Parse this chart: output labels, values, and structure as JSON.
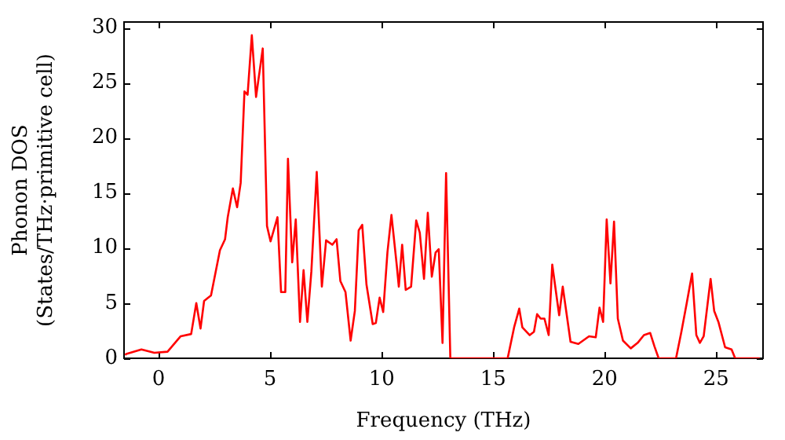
{
  "chart_data": {
    "type": "line",
    "xlabel": "Frequency (THz)",
    "ylabel": "Phonon DOS (States/THz·primitive cell)",
    "xlim": [
      -1.55,
      27.1
    ],
    "ylim": [
      0,
      30.5
    ],
    "xticks": [
      0,
      5,
      10,
      15,
      20,
      25
    ],
    "yticks": [
      0,
      5,
      10,
      15,
      20,
      25,
      30
    ],
    "grid": false,
    "legend": false,
    "marker": "none",
    "line_style": "solid",
    "series": [
      {
        "color": "#ff0000",
        "x": [
          -1.5,
          -1.45,
          -0.77,
          -0.19,
          0.4,
          0.99,
          1.46,
          1.69,
          1.88,
          2.04,
          2.35,
          2.75,
          2.98,
          3.1,
          3.33,
          3.52,
          3.68,
          3.85,
          3.99,
          4.18,
          4.37,
          4.67,
          4.86,
          5.02,
          5.33,
          5.49,
          5.68,
          5.8,
          5.99,
          6.15,
          6.34,
          6.5,
          6.67,
          6.85,
          7.09,
          7.32,
          7.51,
          7.79,
          7.98,
          8.15,
          8.38,
          8.61,
          8.8,
          8.97,
          9.13,
          9.32,
          9.6,
          9.74,
          9.91,
          10.07,
          10.26,
          10.44,
          10.68,
          10.77,
          10.92,
          11.08,
          11.32,
          11.55,
          11.71,
          11.9,
          12.07,
          12.25,
          12.42,
          12.56,
          12.73,
          12.89,
          13.08,
          15.65,
          15.94,
          16.17,
          16.31,
          16.64,
          16.83,
          16.97,
          17.13,
          17.3,
          17.49,
          17.65,
          17.96,
          18.12,
          18.47,
          18.82,
          19.3,
          19.6,
          19.77,
          19.93,
          20.09,
          20.26,
          20.42,
          20.59,
          20.82,
          21.17,
          21.48,
          21.76,
          22.04,
          22.23,
          22.42,
          23.2,
          23.44,
          23.68,
          23.92,
          24.11,
          24.27,
          24.44,
          24.75,
          24.91,
          25.1,
          25.4,
          25.69,
          25.85,
          26.95
        ],
        "values": [
          0.3,
          0.4,
          0.8,
          0.5,
          0.6,
          2.0,
          2.2,
          5.0,
          2.7,
          5.2,
          5.7,
          9.8,
          10.8,
          12.8,
          15.4,
          13.7,
          15.9,
          24.2,
          23.9,
          29.3,
          23.7,
          28.1,
          12.0,
          10.6,
          12.8,
          6.0,
          6.0,
          18.1,
          8.7,
          12.6,
          3.3,
          8.0,
          3.3,
          7.9,
          16.9,
          6.5,
          10.7,
          10.3,
          10.8,
          7.0,
          6.0,
          1.6,
          4.3,
          11.6,
          12.1,
          6.7,
          3.1,
          3.2,
          5.5,
          4.2,
          9.6,
          13.0,
          8.4,
          6.5,
          10.3,
          6.2,
          6.5,
          12.5,
          11.4,
          7.2,
          13.2,
          7.4,
          9.6,
          9.9,
          1.4,
          16.8,
          0,
          0,
          2.8,
          4.5,
          2.8,
          2.1,
          2.4,
          4.0,
          3.6,
          3.6,
          2.1,
          8.5,
          3.9,
          6.5,
          1.5,
          1.3,
          2.0,
          1.9,
          4.6,
          3.3,
          12.6,
          6.8,
          12.4,
          3.6,
          1.6,
          0.9,
          1.4,
          2.1,
          2.3,
          1.1,
          0,
          0,
          2.4,
          5.0,
          7.7,
          2.1,
          1.4,
          2.0,
          7.2,
          4.3,
          3.3,
          1.0,
          0.8,
          0,
          0
        ]
      }
    ]
  }
}
